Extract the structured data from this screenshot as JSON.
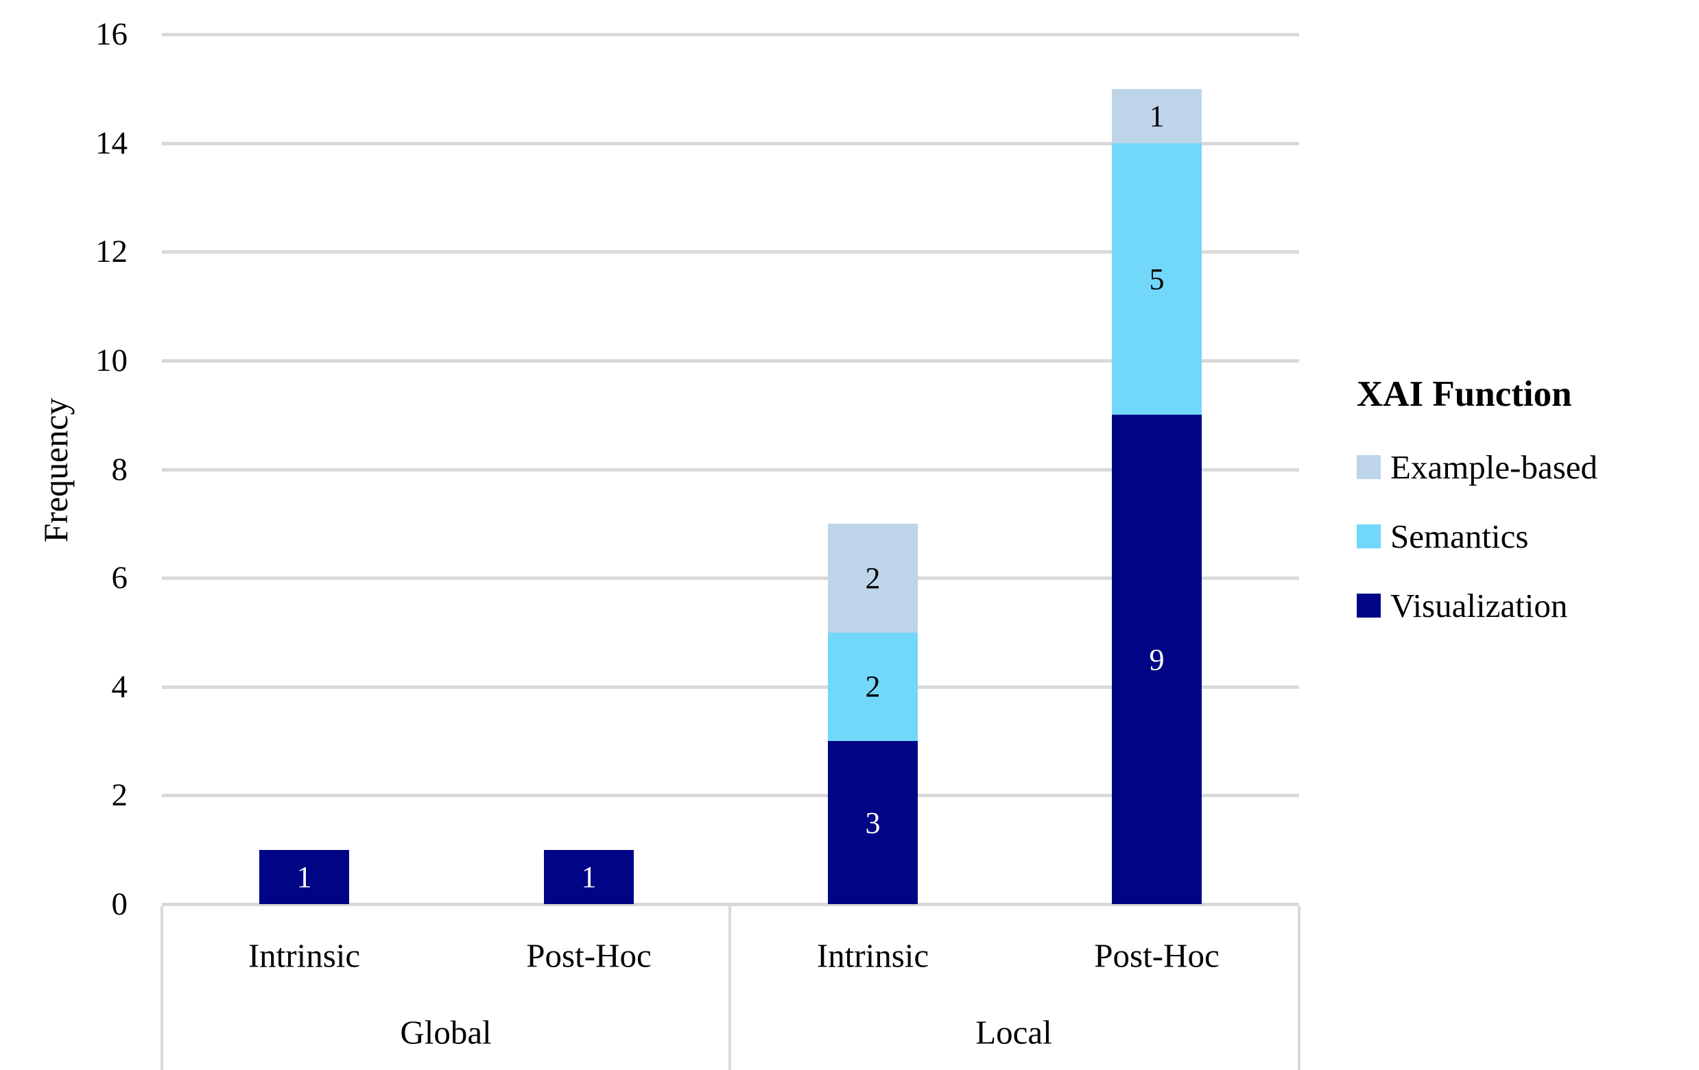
{
  "chart_data": {
    "type": "bar",
    "stacked": true,
    "ylabel": "Frequency",
    "ylim": [
      0,
      16
    ],
    "ytick_step": 2,
    "grid": true,
    "legend_title": "XAI Function",
    "legend_position": "right",
    "groups": [
      {
        "label": "Global",
        "categories": [
          "Intrinsic",
          "Post-Hoc"
        ]
      },
      {
        "label": "Local",
        "categories": [
          "Intrinsic",
          "Post-Hoc"
        ]
      }
    ],
    "categories": [
      "Global Intrinsic",
      "Global Post-Hoc",
      "Local Intrinsic",
      "Local Post-Hoc"
    ],
    "series": [
      {
        "name": "Example-based",
        "color": "#BDD4E9",
        "values": [
          0,
          0,
          2,
          1
        ]
      },
      {
        "name": "Semantics",
        "color": "#71D8FA",
        "values": [
          0,
          0,
          2,
          5
        ]
      },
      {
        "name": "Visualization",
        "color": "#000586",
        "values": [
          1,
          1,
          3,
          9
        ]
      }
    ],
    "colors": {
      "gridline": "#D9D9D9",
      "text": "#000000",
      "label_on_dark": "#FFFFFF",
      "label_on_light": "#000000"
    }
  }
}
